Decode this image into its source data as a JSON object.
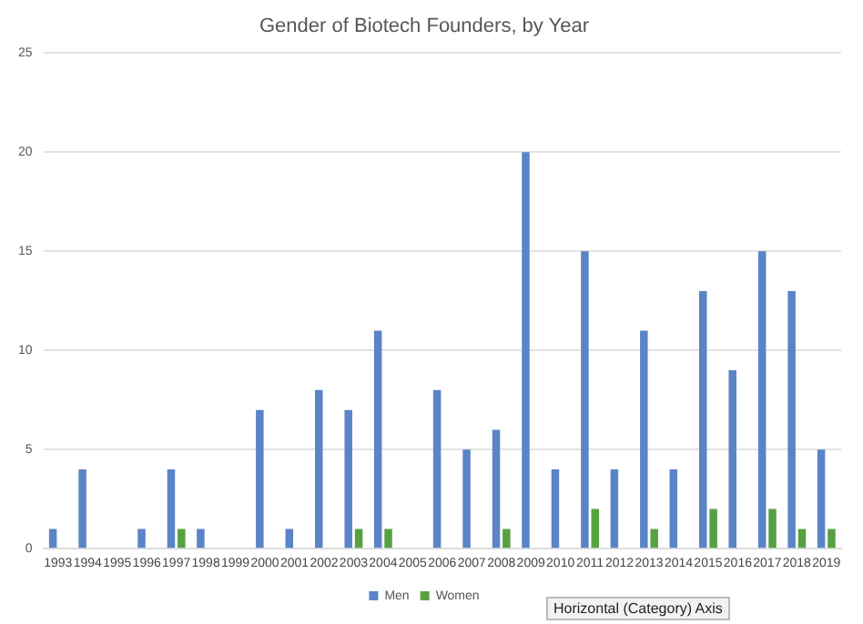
{
  "chart_data": {
    "type": "bar",
    "title": "Gender of Biotech Founders, by Year",
    "categories": [
      "1993",
      "1994",
      "1995",
      "1996",
      "1997",
      "1998",
      "1999",
      "2000",
      "2001",
      "2002",
      "2003",
      "2004",
      "2005",
      "2006",
      "2007",
      "2008",
      "2009",
      "2010",
      "2011",
      "2012",
      "2013",
      "2014",
      "2015",
      "2016",
      "2017",
      "2018",
      "2019"
    ],
    "series": [
      {
        "name": "Men",
        "color": "#5b84c6",
        "values": [
          1,
          4,
          0,
          1,
          4,
          1,
          0,
          7,
          1,
          8,
          7,
          11,
          0,
          8,
          5,
          6,
          20,
          4,
          15,
          4,
          11,
          4,
          13,
          9,
          15,
          13,
          5
        ]
      },
      {
        "name": "Women",
        "color": "#58a143",
        "values": [
          0,
          0,
          0,
          0,
          1,
          0,
          0,
          0,
          0,
          0,
          1,
          1,
          0,
          0,
          0,
          1,
          0,
          0,
          2,
          0,
          1,
          0,
          2,
          0,
          2,
          1,
          1
        ]
      }
    ],
    "ylim": [
      0,
      25
    ],
    "yticks": [
      0,
      5,
      10,
      15,
      20,
      25
    ],
    "grid": "y",
    "legend": "bottom",
    "annotations": [
      "Horizontal (Category) Axis"
    ]
  }
}
